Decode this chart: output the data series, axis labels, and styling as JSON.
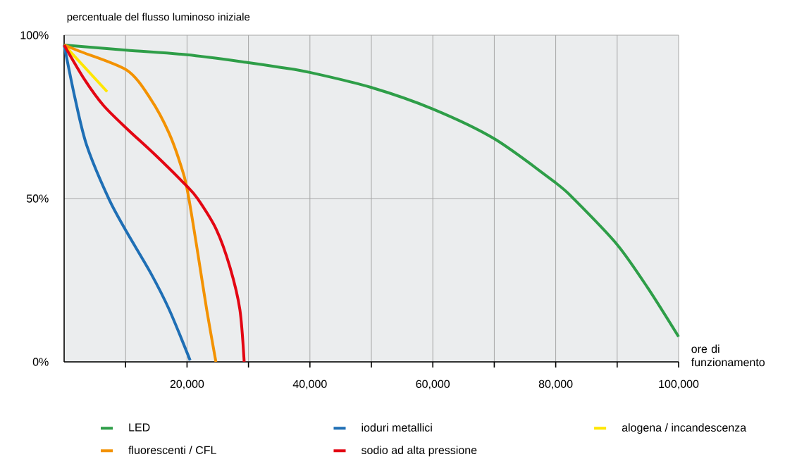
{
  "chart_data": {
    "type": "line",
    "ylabel": "percentuale del flusso luminoso iniziale",
    "xlabel": "ore di funzionamento",
    "xlim": [
      0,
      100000
    ],
    "ylim": [
      0,
      100
    ],
    "xticks": [
      {
        "value": 10000,
        "label": null
      },
      {
        "value": 20000,
        "label": "20,000"
      },
      {
        "value": 30000,
        "label": null
      },
      {
        "value": 40000,
        "label": "40,000"
      },
      {
        "value": 50000,
        "label": null
      },
      {
        "value": 60000,
        "label": "60,000"
      },
      {
        "value": 70000,
        "label": null
      },
      {
        "value": 80000,
        "label": "80,000"
      },
      {
        "value": 90000,
        "label": null
      },
      {
        "value": 100000,
        "label": "100,000"
      }
    ],
    "yticks": [
      {
        "value": 0,
        "label": "0%"
      },
      {
        "value": 50,
        "label": "50%"
      },
      {
        "value": 100,
        "label": "100%"
      }
    ],
    "grid": true,
    "legend": "bottom",
    "series": [
      {
        "name": "LED",
        "color": "#2e9e48",
        "x": [
          0,
          10100,
          20000,
          30000,
          35400,
          40000,
          50000,
          60000,
          70000,
          80000,
          83100,
          90000,
          95000,
          100000
        ],
        "values": [
          97,
          95.4,
          94,
          91.6,
          90.1,
          88.6,
          84,
          77.4,
          68.3,
          54.8,
          49.6,
          35.9,
          22.6,
          7.7
        ]
      },
      {
        "name": "ioduri metallici",
        "color": "#1f6fb5",
        "x": [
          0,
          1770,
          3670,
          7300,
          10200,
          14000,
          17100,
          20500
        ],
        "values": [
          97,
          80.7,
          66.3,
          49.8,
          39.7,
          27.5,
          16,
          0.5
        ]
      },
      {
        "name": "alogena / incandescenza",
        "color": "#ffe600",
        "x": [
          0,
          7000
        ],
        "values": [
          97,
          82.7
        ]
      },
      {
        "name": "fluorescenti / CFL",
        "color": "#f39200",
        "x": [
          0,
          2500,
          10200,
          14000,
          17100,
          19400,
          20300,
          21700,
          23200,
          24700
        ],
        "values": [
          97,
          95.1,
          89.3,
          80.7,
          69.9,
          57.7,
          50,
          33.9,
          16,
          0
        ]
      },
      {
        "name": "sodio ad alta pressione",
        "color": "#e30613",
        "x": [
          0,
          3300,
          6400,
          10200,
          14800,
          19800,
          21700,
          24800,
          27000,
          28600,
          29300
        ],
        "values": [
          97,
          86.5,
          78.5,
          71.4,
          63.4,
          54.1,
          50,
          40.4,
          28.9,
          16,
          0
        ]
      }
    ]
  }
}
